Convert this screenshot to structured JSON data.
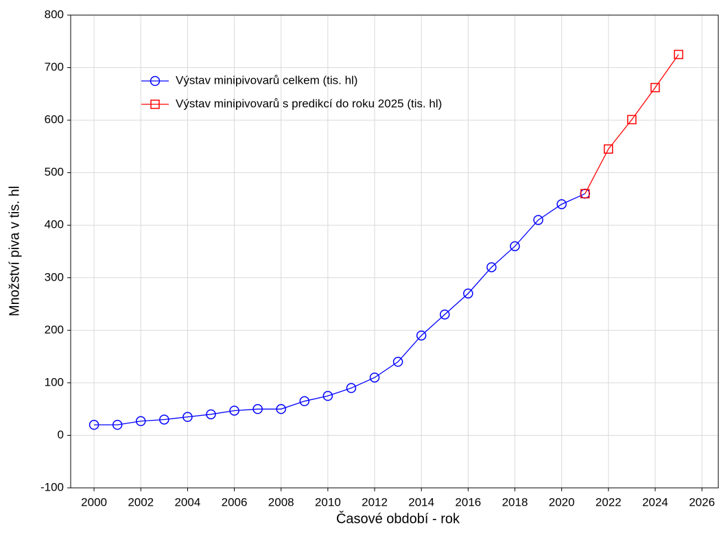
{
  "chart_data": {
    "type": "line",
    "x_label": "Časové období - rok",
    "y_label": "Množství piva v tis. hl",
    "x": [
      2000,
      2001,
      2002,
      2003,
      2004,
      2005,
      2006,
      2007,
      2008,
      2009,
      2010,
      2011,
      2012,
      2013,
      2014,
      2015,
      2016,
      2017,
      2018,
      2019,
      2020,
      2021,
      2022,
      2023,
      2024,
      2025
    ],
    "series": [
      {
        "name": "Výstav minipivovarů celkem (tis. hl)",
        "color": "#0000ff",
        "marker": "circle",
        "values": [
          20,
          20,
          27,
          30,
          35,
          40,
          47,
          50,
          50,
          65,
          75,
          90,
          110,
          140,
          190,
          230,
          270,
          320,
          360,
          410,
          440,
          460,
          null,
          null,
          null,
          null
        ]
      },
      {
        "name": "Výstav minipivovarů s predikcí do roku 2025 (tis. hl)",
        "color": "#ff0000",
        "marker": "square",
        "values": [
          null,
          null,
          null,
          null,
          null,
          null,
          null,
          null,
          null,
          null,
          null,
          null,
          null,
          null,
          null,
          null,
          null,
          null,
          null,
          null,
          null,
          460,
          545,
          601,
          662,
          725
        ]
      }
    ],
    "xlim": [
      1999,
      2026.7
    ],
    "ylim": [
      -100,
      800
    ],
    "xticks": [
      2000,
      2002,
      2004,
      2006,
      2008,
      2010,
      2012,
      2014,
      2016,
      2018,
      2020,
      2022,
      2024,
      2026
    ],
    "yticks": [
      -100,
      0,
      100,
      200,
      300,
      400,
      500,
      600,
      700,
      800
    ],
    "grid": true
  }
}
